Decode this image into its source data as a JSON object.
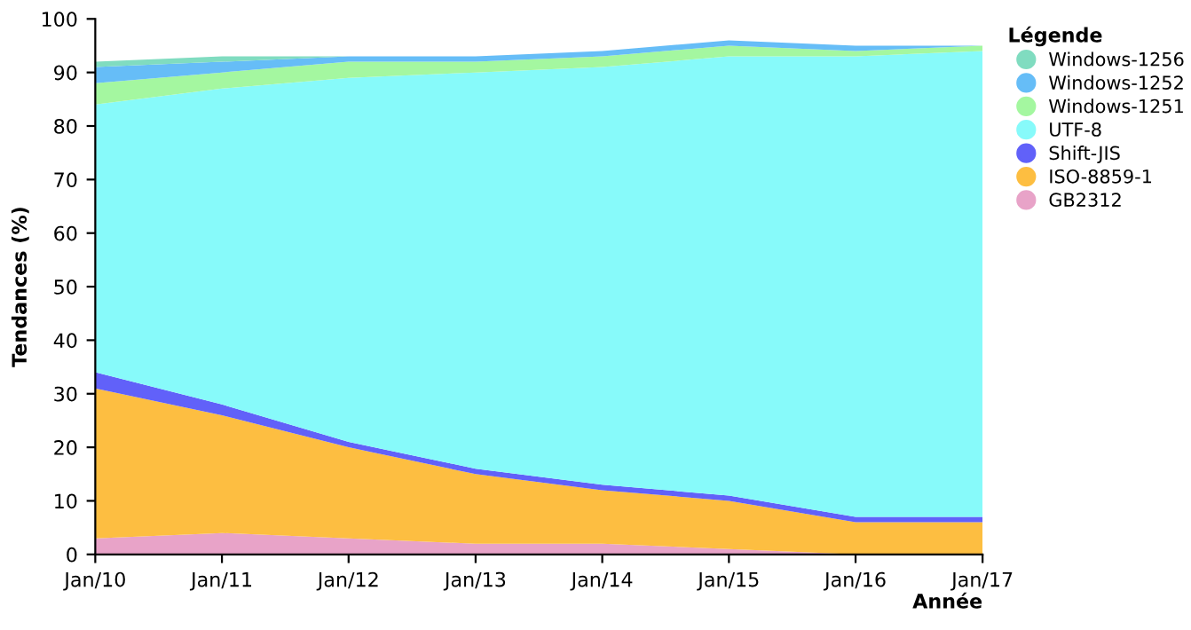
{
  "chart_data": {
    "type": "area",
    "stacked": true,
    "xlabel": "Année",
    "ylabel": "Tendances (%)",
    "legend_title": "Légende",
    "legend": "top right",
    "grid": false,
    "x": [
      "2010-01",
      "2011-01",
      "2012-01",
      "2013-01",
      "2014-01",
      "2015-01",
      "2016-01",
      "2017-01"
    ],
    "xlim": [
      "2010-01",
      "2017-01"
    ],
    "xticks": [
      {
        "value": "2010-01",
        "label": "Jan/10"
      },
      {
        "value": "2011-01",
        "label": "Jan/11"
      },
      {
        "value": "2012-01",
        "label": "Jan/12"
      },
      {
        "value": "2013-01",
        "label": "Jan/13"
      },
      {
        "value": "2014-01",
        "label": "Jan/14"
      },
      {
        "value": "2015-01",
        "label": "Jan/15"
      },
      {
        "value": "2016-01",
        "label": "Jan/16"
      },
      {
        "value": "2017-01",
        "label": "Jan/17"
      }
    ],
    "ylim": [
      0,
      100
    ],
    "yticks": [
      0,
      10,
      20,
      30,
      40,
      50,
      60,
      70,
      80,
      90,
      100
    ],
    "series": [
      {
        "name": "GB2312",
        "color": "#e8a3c8",
        "values": [
          3,
          4,
          3,
          2,
          2,
          1,
          0,
          0
        ]
      },
      {
        "name": "ISO-8859-1",
        "color": "#fdbe41",
        "values": [
          28,
          22,
          17,
          13,
          10,
          9,
          6,
          6
        ]
      },
      {
        "name": "Shift-JIS",
        "color": "#6161f9",
        "values": [
          3,
          2,
          1,
          1,
          1,
          1,
          1,
          1
        ]
      },
      {
        "name": "UTF-8",
        "color": "#87fafa",
        "values": [
          50,
          59,
          68,
          74,
          78,
          82,
          86,
          87
        ]
      },
      {
        "name": "Windows-1251",
        "color": "#a4f7a0",
        "values": [
          4,
          3,
          3,
          2,
          2,
          2,
          1,
          1
        ]
      },
      {
        "name": "Windows-1252",
        "color": "#66bdf7",
        "values": [
          3,
          2,
          1,
          1,
          1,
          1,
          1,
          0
        ]
      },
      {
        "name": "Windows-1256",
        "color": "#80dcc0",
        "values": [
          1,
          1,
          0,
          0,
          0,
          0,
          0,
          0
        ]
      }
    ]
  }
}
